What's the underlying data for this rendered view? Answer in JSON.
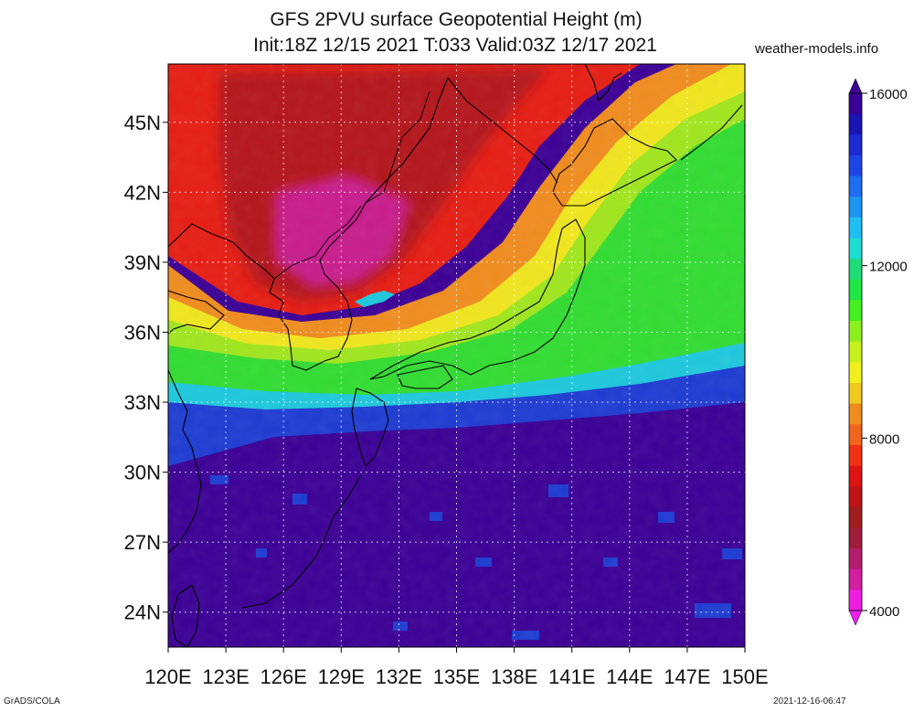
{
  "title": {
    "line1": "GFS 2PVU surface Geopotential Height (m)",
    "line2": "Init:18Z 12/15 2021 T:033 Valid:03Z 12/17 2021"
  },
  "source": "weather-models.info",
  "footer": {
    "left": "GrADS/COLA",
    "right": "2021-12-16-06:47"
  },
  "map": {
    "lon_range": [
      120,
      150
    ],
    "lat_range": [
      22.5,
      47.5
    ],
    "lon_ticks": [
      "120E",
      "123E",
      "126E",
      "129E",
      "132E",
      "135E",
      "138E",
      "141E",
      "144E",
      "147E",
      "150E"
    ],
    "lat_ticks": [
      "24N",
      "27N",
      "30N",
      "33N",
      "36N",
      "39N",
      "42N",
      "45N"
    ]
  },
  "colorbar": {
    "labels": [
      "16000",
      "12000",
      "8000",
      "4000"
    ],
    "colors": [
      "#3c0096",
      "#1a14b4",
      "#1e2ad2",
      "#1e46e6",
      "#1e6ef0",
      "#1e96f0",
      "#1ebef0",
      "#1edcd2",
      "#1edc78",
      "#1ee646",
      "#46f01e",
      "#8cf01e",
      "#c8f01e",
      "#f0f01e",
      "#f0c81e",
      "#f08c1e",
      "#f0641e",
      "#f03214",
      "#dc1414",
      "#be1414",
      "#a01e1e",
      "#a01e3c",
      "#b41e6e",
      "#d21ea0",
      "#ee1ee0"
    ],
    "top_arrow_color": "#3c0096",
    "bottom_arrow_color": "#f01ef0"
  },
  "palette": {
    "deep": "#3c0096",
    "blue": "#1e3cd2",
    "cyan": "#1ec8dc",
    "green": "#32dc32",
    "lime": "#a0e61e",
    "yellow": "#f0e61e",
    "orange": "#f08c1e",
    "red": "#e61e14",
    "darkred": "#b4141e",
    "magenta": "#c81e8c"
  }
}
